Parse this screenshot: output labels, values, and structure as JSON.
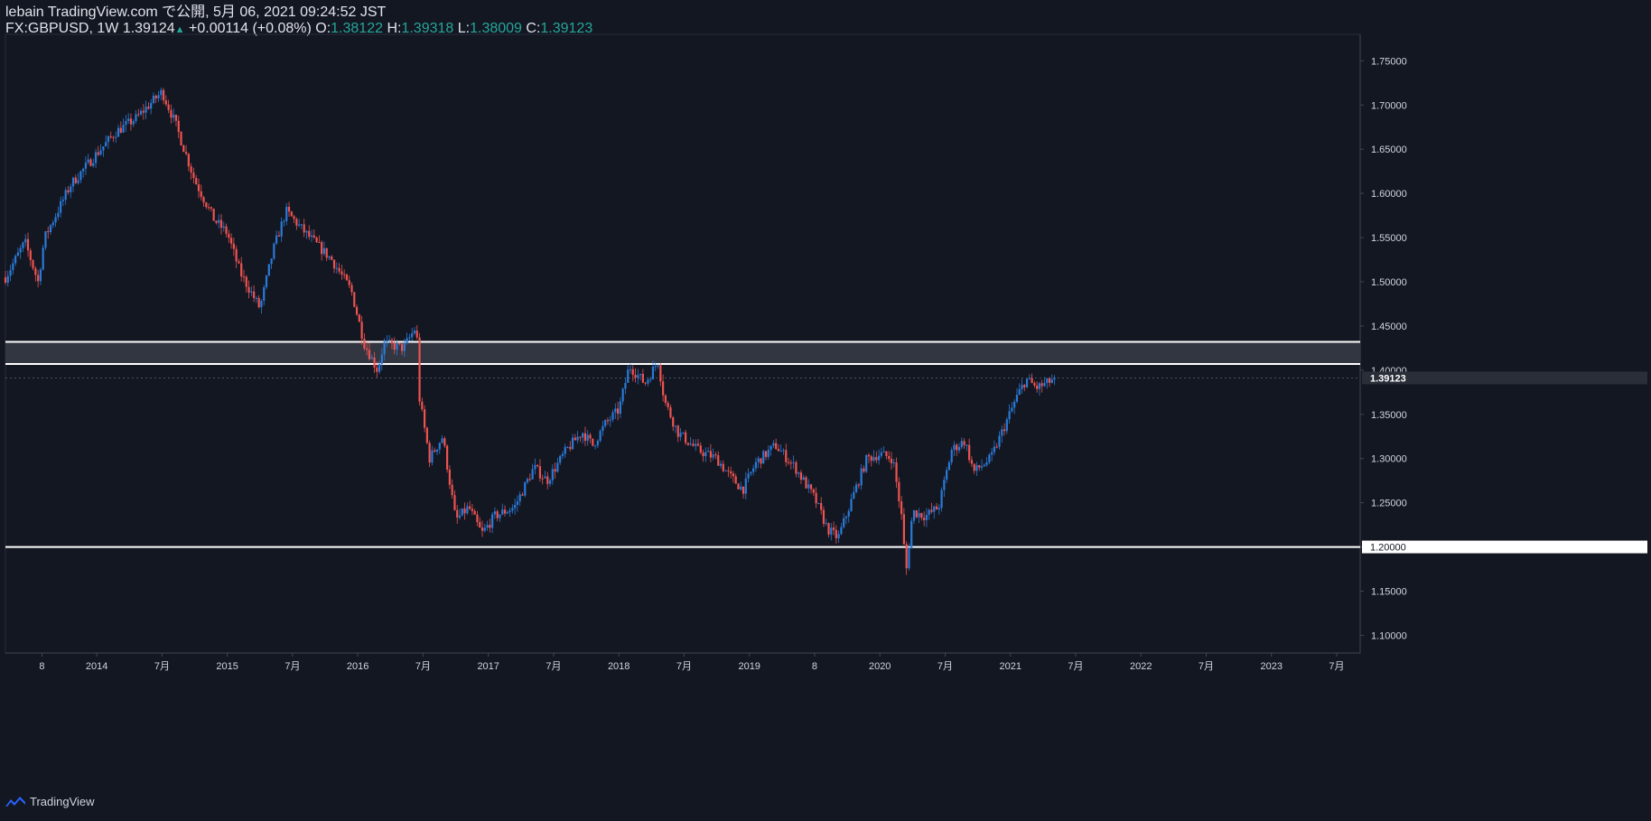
{
  "header": {
    "publisher": "lebain TradingView.com で公開, 5月 06, 2021 09:24:52 JST",
    "symbol": "FX:GBPUSD, 1W",
    "last": "1.39124",
    "change": "+0.00114 (+0.08%)",
    "open_label": "O:",
    "open": "1.38122",
    "high_label": "H:",
    "high": "1.39318",
    "low_label": "L:",
    "low": "1.38009",
    "close_label": "C:",
    "close": "1.39123"
  },
  "footer": {
    "brand": "TradingView",
    "icon": "tradingview-logo-icon"
  },
  "colors": {
    "background": "#131722",
    "up": "#2a7ad8",
    "down": "#ef5350",
    "zone": "#363a45",
    "line": "#ffffff",
    "axis_text": "#d1d4dc"
  },
  "chart_data": {
    "type": "candlestick",
    "symbol": "GBPUSD",
    "interval": "1W",
    "ylim": [
      1.08,
      1.78
    ],
    "y_ticks": [
      1.1,
      1.15,
      1.2,
      1.25,
      1.3,
      1.35,
      1.4,
      1.45,
      1.5,
      1.55,
      1.6,
      1.65,
      1.7,
      1.75
    ],
    "y_tick_labels": [
      "1.10000",
      "1.15000",
      "1.20000",
      "1.25000",
      "1.30000",
      "1.35000",
      "1.40000",
      "1.45000",
      "1.50000",
      "1.55000",
      "1.60000",
      "1.65000",
      "1.70000",
      "1.75000"
    ],
    "x_ticks": [
      {
        "t": 2013.58,
        "label": "8"
      },
      {
        "t": 2014.0,
        "label": "2014"
      },
      {
        "t": 2014.5,
        "label": "7月"
      },
      {
        "t": 2015.0,
        "label": "2015"
      },
      {
        "t": 2015.5,
        "label": "7月"
      },
      {
        "t": 2016.0,
        "label": "2016"
      },
      {
        "t": 2016.5,
        "label": "7月"
      },
      {
        "t": 2017.0,
        "label": "2017"
      },
      {
        "t": 2017.5,
        "label": "7月"
      },
      {
        "t": 2018.0,
        "label": "2018"
      },
      {
        "t": 2018.5,
        "label": "7月"
      },
      {
        "t": 2019.0,
        "label": "2019"
      },
      {
        "t": 2019.5,
        "label": "8"
      },
      {
        "t": 2020.0,
        "label": "2020"
      },
      {
        "t": 2020.5,
        "label": "7月"
      },
      {
        "t": 2021.0,
        "label": "2021"
      },
      {
        "t": 2021.5,
        "label": "7月"
      },
      {
        "t": 2022.0,
        "label": "2022"
      },
      {
        "t": 2022.5,
        "label": "7月"
      },
      {
        "t": 2023.0,
        "label": "2023"
      },
      {
        "t": 2023.5,
        "label": "7月"
      }
    ],
    "xlim": [
      2013.3,
      2023.68
    ],
    "price_label": "1.39123",
    "price_value": 1.39123,
    "level_label": "1.20000",
    "level_value": 1.2,
    "zone": [
      1.407,
      1.432
    ],
    "level_line": 1.2,
    "series_start": 2013.3,
    "series_end": 2021.34,
    "close_path": [
      [
        2013.3,
        1.505
      ],
      [
        2013.45,
        1.545
      ],
      [
        2013.55,
        1.5
      ],
      [
        2013.6,
        1.55
      ],
      [
        2013.8,
        1.61
      ],
      [
        2014.0,
        1.645
      ],
      [
        2014.15,
        1.67
      ],
      [
        2014.3,
        1.685
      ],
      [
        2014.5,
        1.715
      ],
      [
        2014.6,
        1.68
      ],
      [
        2014.75,
        1.615
      ],
      [
        2014.9,
        1.57
      ],
      [
        2015.0,
        1.555
      ],
      [
        2015.1,
        1.51
      ],
      [
        2015.25,
        1.47
      ],
      [
        2015.35,
        1.535
      ],
      [
        2015.45,
        1.58
      ],
      [
        2015.6,
        1.555
      ],
      [
        2015.7,
        1.54
      ],
      [
        2015.8,
        1.525
      ],
      [
        2015.95,
        1.49
      ],
      [
        2016.05,
        1.43
      ],
      [
        2016.15,
        1.4
      ],
      [
        2016.2,
        1.43
      ],
      [
        2016.35,
        1.425
      ],
      [
        2016.45,
        1.45
      ],
      [
        2016.47,
        1.37
      ],
      [
        2016.55,
        1.3
      ],
      [
        2016.65,
        1.325
      ],
      [
        2016.75,
        1.23
      ],
      [
        2016.85,
        1.245
      ],
      [
        2016.95,
        1.215
      ],
      [
        2017.05,
        1.235
      ],
      [
        2017.2,
        1.245
      ],
      [
        2017.35,
        1.29
      ],
      [
        2017.45,
        1.275
      ],
      [
        2017.6,
        1.31
      ],
      [
        2017.72,
        1.33
      ],
      [
        2017.8,
        1.315
      ],
      [
        2017.9,
        1.34
      ],
      [
        2018.0,
        1.355
      ],
      [
        2018.08,
        1.405
      ],
      [
        2018.2,
        1.385
      ],
      [
        2018.3,
        1.41
      ],
      [
        2018.35,
        1.365
      ],
      [
        2018.45,
        1.33
      ],
      [
        2018.6,
        1.31
      ],
      [
        2018.75,
        1.3
      ],
      [
        2018.85,
        1.28
      ],
      [
        2018.95,
        1.265
      ],
      [
        2019.05,
        1.295
      ],
      [
        2019.2,
        1.315
      ],
      [
        2019.35,
        1.29
      ],
      [
        2019.5,
        1.255
      ],
      [
        2019.6,
        1.22
      ],
      [
        2019.68,
        1.21
      ],
      [
        2019.8,
        1.26
      ],
      [
        2019.9,
        1.3
      ],
      [
        2020.0,
        1.305
      ],
      [
        2020.1,
        1.3
      ],
      [
        2020.17,
        1.23
      ],
      [
        2020.2,
        1.17
      ],
      [
        2020.25,
        1.24
      ],
      [
        2020.35,
        1.235
      ],
      [
        2020.45,
        1.245
      ],
      [
        2020.55,
        1.31
      ],
      [
        2020.65,
        1.32
      ],
      [
        2020.72,
        1.285
      ],
      [
        2020.85,
        1.3
      ],
      [
        2020.95,
        1.335
      ],
      [
        2021.05,
        1.37
      ],
      [
        2021.12,
        1.39
      ],
      [
        2021.2,
        1.38
      ],
      [
        2021.28,
        1.385
      ],
      [
        2021.34,
        1.39124
      ]
    ]
  }
}
